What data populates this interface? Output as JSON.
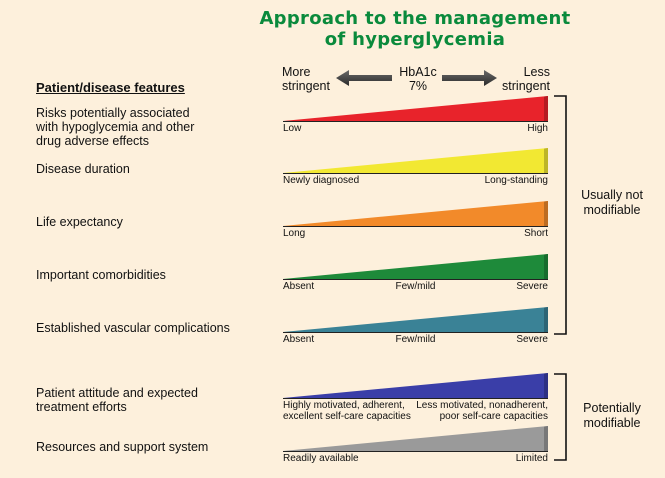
{
  "title": {
    "line1": "Approach to the management",
    "line2": "of hyperglycemia"
  },
  "features_header": "Patient/disease features",
  "scale": {
    "left_line1": "More",
    "left_line2": "stringent",
    "center_line1": "HbA1c",
    "center_line2": "7%",
    "right_line1": "Less",
    "right_line2": "stringent"
  },
  "rows": [
    {
      "label": [
        "Risks potentially associated",
        "with hypoglycemia and other",
        "drug adverse effects"
      ],
      "color": "#e8232b",
      "ticks": {
        "left": "Low",
        "mid": "",
        "right": "High"
      }
    },
    {
      "label": [
        "Disease duration"
      ],
      "color": "#f2e832",
      "ticks": {
        "left": "Newly diagnosed",
        "mid": "",
        "right": "Long-standing"
      }
    },
    {
      "label": [
        "Life expectancy"
      ],
      "color": "#f28a2a",
      "ticks": {
        "left": "Long",
        "mid": "",
        "right": "Short"
      }
    },
    {
      "label": [
        "Important comorbidities"
      ],
      "color": "#1e8a3a",
      "ticks": {
        "left": "Absent",
        "mid": "Few/mild",
        "right": "Severe"
      }
    },
    {
      "label": [
        "Established vascular complications"
      ],
      "color": "#3a8296",
      "ticks": {
        "left": "Absent",
        "mid": "Few/mild",
        "right": "Severe"
      }
    },
    {
      "label": [
        "Patient attitude and expected",
        "treatment efforts"
      ],
      "color": "#3a3ea8",
      "ticks": {
        "left": [
          "Highly motivated, adherent,",
          "excellent self-care capacities"
        ],
        "mid": "",
        "right": [
          "Less motivated, nonadherent,",
          "poor self-care capacities"
        ]
      }
    },
    {
      "label": [
        "Resources and support system"
      ],
      "color": "#9a9a9a",
      "ticks": {
        "left": "Readily available",
        "mid": "",
        "right": "Limited"
      }
    }
  ],
  "groups": [
    {
      "label": [
        "Usually not",
        "modifiable"
      ]
    },
    {
      "label": [
        "Potentially",
        "modifiable"
      ]
    }
  ]
}
